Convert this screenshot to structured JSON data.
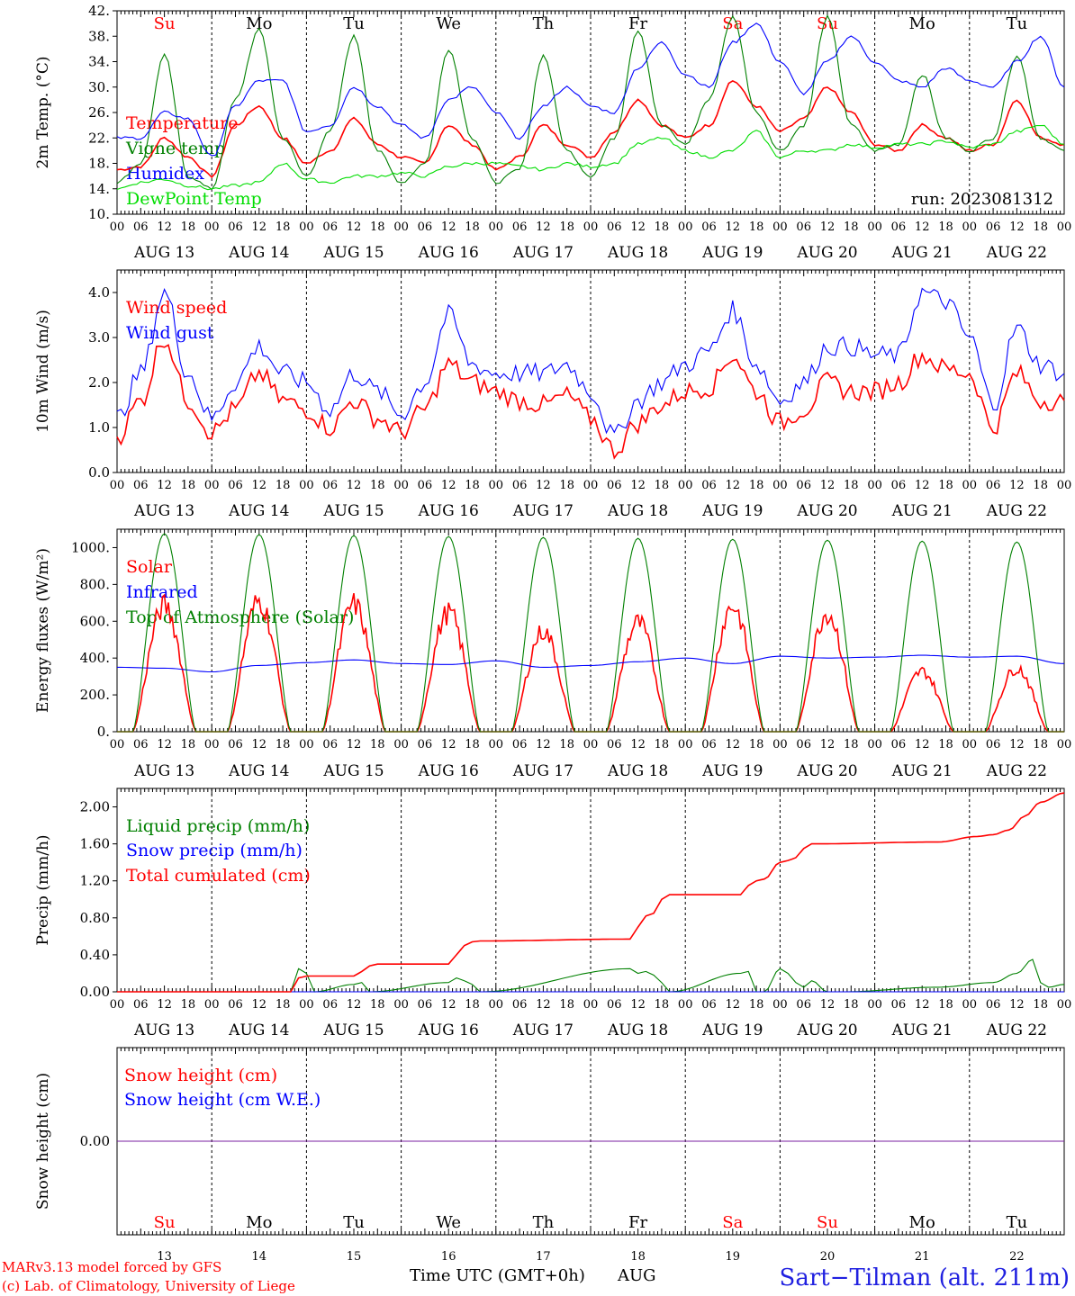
{
  "run_label": "run: 2023081312",
  "colors": {
    "red": "#ff0000",
    "green": "#008000",
    "blue": "#0000ff",
    "lime": "#00dd00",
    "purple": "#7a1fa0"
  },
  "days": {
    "dow": [
      "Su",
      "Mo",
      "Tu",
      "We",
      "Th",
      "Fr",
      "Sa",
      "Su",
      "Mo",
      "Tu"
    ],
    "dow_colors": [
      "#ff0000",
      "#000000",
      "#000000",
      "#000000",
      "#000000",
      "#000000",
      "#ff0000",
      "#ff0000",
      "#000000",
      "#000000"
    ],
    "dates": [
      "AUG 13",
      "AUG 14",
      "AUG 15",
      "AUG 16",
      "AUG 17",
      "AUG 18",
      "AUG 19",
      "AUG 20",
      "AUG 21",
      "AUG 22"
    ],
    "day_numbers": [
      "13",
      "14",
      "15",
      "16",
      "17",
      "18",
      "19",
      "20",
      "21",
      "22"
    ],
    "hours": [
      "00",
      "06",
      "12",
      "18"
    ],
    "final_hour": "00"
  },
  "chart_data": [
    {
      "type": "line",
      "ylabel": "2m Temp. (°C)",
      "ylim": [
        10,
        42
      ],
      "yticks": [
        "10.",
        "14.",
        "18.",
        "22.",
        "26.",
        "30.",
        "34.",
        "38.",
        "42."
      ],
      "x_unit": "hours since 2023-08-13 00 UTC",
      "series": [
        {
          "name": "Temperature",
          "color": "#ff0000",
          "x": [
            0,
            6,
            12,
            18,
            24,
            30,
            36,
            42,
            48,
            54,
            60,
            66,
            72,
            78,
            84,
            90,
            96,
            102,
            108,
            114,
            120,
            126,
            132,
            138,
            144,
            150,
            156,
            162,
            168,
            174,
            180,
            186,
            192,
            198,
            204,
            210,
            216,
            222,
            228,
            234,
            240
          ],
          "y": [
            17,
            17.5,
            22,
            19,
            16,
            24,
            27,
            22,
            18,
            20,
            25,
            21,
            19,
            18,
            24,
            21,
            17,
            19,
            24,
            21,
            19,
            23,
            28,
            24,
            22,
            24,
            31,
            27,
            23,
            25,
            30,
            26,
            21,
            20,
            24,
            22,
            20,
            21,
            28,
            22,
            21
          ]
        },
        {
          "name": "Vigne temp",
          "color": "#008000",
          "x": [
            0,
            6,
            12,
            18,
            24,
            30,
            36,
            42,
            48,
            54,
            60,
            66,
            72,
            78,
            84,
            90,
            96,
            102,
            108,
            114,
            120,
            126,
            132,
            138,
            144,
            150,
            156,
            162,
            168,
            174,
            180,
            186,
            192,
            198,
            204,
            210,
            216,
            222,
            228,
            234,
            240
          ],
          "y": [
            15,
            18,
            35,
            16,
            14,
            28,
            39,
            22,
            16,
            23,
            38,
            20,
            15,
            18,
            36,
            22,
            15,
            17,
            35,
            20,
            16,
            22,
            39,
            24,
            21,
            28,
            41,
            26,
            20,
            24,
            41,
            24,
            20,
            21,
            32,
            22,
            20,
            22,
            35,
            22,
            20
          ]
        },
        {
          "name": "Humidex",
          "color": "#0000ff",
          "x": [
            0,
            6,
            12,
            18,
            24,
            30,
            36,
            42,
            48,
            54,
            60,
            66,
            72,
            78,
            84,
            90,
            96,
            102,
            108,
            114,
            120,
            126,
            132,
            138,
            144,
            150,
            156,
            162,
            168,
            174,
            180,
            186,
            192,
            198,
            204,
            210,
            216,
            222,
            228,
            234,
            240
          ],
          "y": [
            22,
            22,
            26,
            25,
            19,
            27,
            31,
            31,
            23,
            24,
            30,
            27,
            24,
            22,
            28,
            30,
            26,
            22,
            27,
            30,
            27,
            26,
            33,
            37,
            32,
            30,
            37,
            40,
            34,
            29,
            34,
            38,
            34,
            31,
            30,
            33,
            31,
            30,
            34,
            38,
            30
          ]
        },
        {
          "name": "DewPoint Temp",
          "color": "#00dd00",
          "x": [
            0,
            6,
            12,
            18,
            24,
            30,
            36,
            42,
            48,
            54,
            60,
            66,
            72,
            78,
            84,
            90,
            96,
            102,
            108,
            114,
            120,
            126,
            132,
            138,
            144,
            150,
            156,
            162,
            168,
            174,
            180,
            186,
            192,
            198,
            204,
            210,
            216,
            222,
            228,
            234,
            240
          ],
          "y": [
            14,
            15,
            15.5,
            14.5,
            14,
            14.5,
            15,
            18,
            15.5,
            15,
            16,
            16,
            16.5,
            16,
            17.5,
            18,
            18,
            17.5,
            17,
            18,
            17.5,
            18,
            21,
            22,
            20,
            19,
            20,
            23,
            19,
            20,
            20,
            21,
            20.5,
            21,
            21,
            21.5,
            20.5,
            21,
            23,
            24,
            21
          ]
        }
      ]
    },
    {
      "type": "line",
      "ylabel": "10m Wind (m/s)",
      "ylim": [
        0,
        4.5
      ],
      "yticks": [
        "0.0",
        "1.0",
        "2.0",
        "3.0",
        "4.0"
      ],
      "series": [
        {
          "name": "Wind speed",
          "color": "#ff0000",
          "x": [
            0,
            6,
            12,
            18,
            24,
            30,
            36,
            42,
            48,
            54,
            60,
            66,
            72,
            78,
            84,
            90,
            96,
            102,
            108,
            114,
            120,
            126,
            132,
            138,
            144,
            150,
            156,
            162,
            168,
            174,
            180,
            186,
            192,
            198,
            204,
            210,
            216,
            222,
            228,
            234,
            240
          ],
          "y": [
            0.8,
            1.6,
            3.0,
            1.6,
            0.9,
            1.4,
            2.2,
            1.6,
            1.4,
            1.0,
            1.6,
            1.2,
            0.9,
            1.4,
            2.4,
            2.0,
            1.8,
            1.6,
            1.5,
            1.7,
            1.2,
            0.5,
            1.1,
            1.5,
            1.8,
            1.9,
            2.6,
            1.8,
            1.1,
            1.4,
            2.0,
            1.8,
            1.8,
            2.0,
            2.6,
            2.3,
            2.2,
            1.0,
            2.2,
            1.6,
            1.6
          ]
        },
        {
          "name": "Wind gust",
          "color": "#0000ff",
          "x": [
            0,
            6,
            12,
            18,
            24,
            30,
            36,
            42,
            48,
            54,
            60,
            66,
            72,
            78,
            84,
            90,
            96,
            102,
            108,
            114,
            120,
            126,
            132,
            138,
            144,
            150,
            156,
            162,
            168,
            174,
            180,
            186,
            192,
            198,
            204,
            210,
            216,
            222,
            228,
            234,
            240
          ],
          "y": [
            1.2,
            2.2,
            4.0,
            2.2,
            1.2,
            2.0,
            2.8,
            2.2,
            2.0,
            1.4,
            2.2,
            1.8,
            1.3,
            2.0,
            3.5,
            2.4,
            2.2,
            2.2,
            2.2,
            2.4,
            1.8,
            0.8,
            1.6,
            2.0,
            2.4,
            2.7,
            3.6,
            2.4,
            1.6,
            2.0,
            2.8,
            2.8,
            2.6,
            2.6,
            4.0,
            3.8,
            3.0,
            1.5,
            3.2,
            2.4,
            2.2
          ]
        }
      ]
    },
    {
      "type": "line",
      "ylabel": "Energy fluxes (W/m²)",
      "ylim": [
        0,
        1100
      ],
      "yticks": [
        "0.",
        "200.",
        "400.",
        "600.",
        "800.",
        "1000."
      ],
      "series": [
        {
          "name": "Solar",
          "color": "#ff0000",
          "peaks": [
            750,
            780,
            760,
            710,
            600,
            650,
            750,
            710,
            360,
            380
          ]
        },
        {
          "name": "Infrared",
          "color": "#0000ff",
          "x": [
            0,
            12,
            24,
            36,
            48,
            60,
            72,
            84,
            96,
            108,
            120,
            132,
            144,
            156,
            168,
            180,
            192,
            204,
            216,
            228,
            240
          ],
          "y": [
            350,
            345,
            325,
            360,
            375,
            390,
            370,
            365,
            385,
            350,
            360,
            380,
            400,
            370,
            410,
            400,
            405,
            415,
            405,
            410,
            370
          ]
        },
        {
          "name": "Top of Atmosphere (Solar)",
          "color": "#008000",
          "peaks": [
            1075,
            1070,
            1065,
            1060,
            1055,
            1050,
            1045,
            1040,
            1035,
            1030
          ]
        }
      ]
    },
    {
      "type": "line",
      "ylabel": "Precip (mm/h)",
      "ylim": [
        0,
        2.2
      ],
      "yticks": [
        "0.00",
        "0.40",
        "0.80",
        "1.20",
        "1.60",
        "2.00"
      ],
      "series": [
        {
          "name": "Liquid precip (mm/h)",
          "color": "#008000",
          "x": [
            0,
            44,
            46,
            48,
            50,
            60,
            62,
            64,
            84,
            86,
            88,
            90,
            92,
            130,
            132,
            134,
            136,
            138,
            140,
            158,
            160,
            162,
            164,
            168,
            170,
            172,
            174,
            176,
            180,
            184,
            208,
            222,
            228,
            232,
            234,
            236,
            240
          ],
          "y": [
            0,
            0,
            0.25,
            0.2,
            0,
            0.08,
            0.1,
            0,
            0.1,
            0.15,
            0.12,
            0.08,
            0,
            0.25,
            0.2,
            0.22,
            0.18,
            0.1,
            0,
            0.2,
            0.22,
            0,
            0,
            0.25,
            0.2,
            0.1,
            0.05,
            0.12,
            0,
            0,
            0.05,
            0.1,
            0.2,
            0.35,
            0.1,
            0.05,
            0.08
          ]
        },
        {
          "name": "Snow precip (mm/h)",
          "color": "#0000ff",
          "x": [
            0,
            240
          ],
          "y": [
            0,
            0
          ]
        },
        {
          "name": "Total cumulated (cm)",
          "color": "#ff0000",
          "x": [
            0,
            44,
            46,
            48,
            50,
            60,
            62,
            64,
            66,
            84,
            86,
            88,
            90,
            92,
            130,
            132,
            134,
            136,
            138,
            140,
            158,
            160,
            162,
            164,
            168,
            170,
            172,
            174,
            176,
            208,
            218,
            222,
            226,
            230,
            234,
            240
          ],
          "y": [
            0,
            0,
            0.15,
            0.17,
            0.17,
            0.17,
            0.22,
            0.28,
            0.3,
            0.3,
            0.4,
            0.5,
            0.54,
            0.55,
            0.57,
            0.7,
            0.82,
            0.85,
            1.0,
            1.05,
            1.05,
            1.15,
            1.2,
            1.22,
            1.4,
            1.42,
            1.45,
            1.55,
            1.6,
            1.62,
            1.68,
            1.7,
            1.75,
            1.9,
            2.05,
            2.15
          ]
        }
      ]
    },
    {
      "type": "line",
      "ylabel": "Snow height (cm)",
      "yticks": [
        "0.00"
      ],
      "series": [
        {
          "name": "Snow height (cm)",
          "color": "#ff0000",
          "x": [
            0,
            240
          ],
          "y": [
            0,
            0
          ]
        },
        {
          "name": "Snow height (cm W.E.)",
          "color": "#0000ff",
          "x": [
            0,
            240
          ],
          "y": [
            0,
            0
          ]
        }
      ]
    }
  ],
  "footer": {
    "model": "MARv3.13 model forced by GFS",
    "credit": "(c) Lab. of Climatology, University of Liege",
    "axis_title": "Time UTC (GMT+0h)",
    "month": "AUG",
    "location": "Sart−Tilman (alt. 211m)"
  }
}
